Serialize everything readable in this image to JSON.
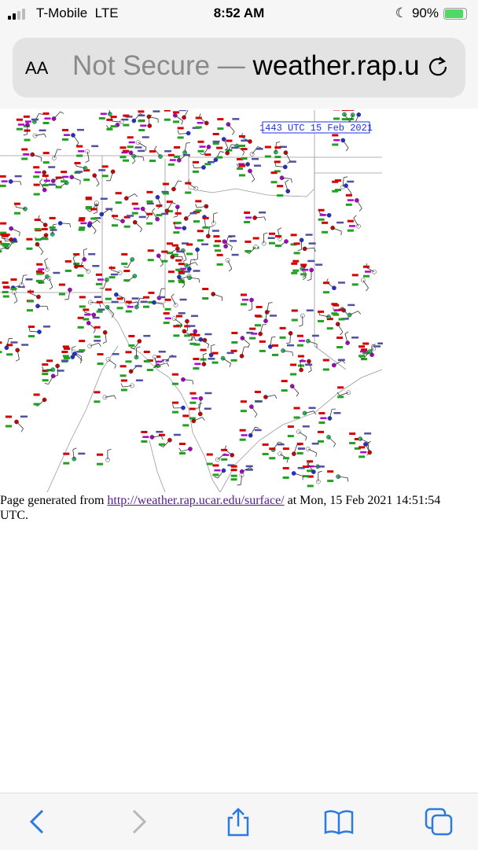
{
  "status_bar": {
    "carrier": "T-Mobile",
    "network": "LTE",
    "time": "8:52 AM",
    "battery": "90%",
    "battery_level": 0.9,
    "icons": [
      "signal-icon",
      "moon-icon",
      "battery-charging-icon"
    ]
  },
  "browser": {
    "text_size_label": "AA",
    "url_prefix": "Not Secure —",
    "url_domain": "weather.rap.u",
    "reload_icon": "reload-icon"
  },
  "map": {
    "title": "1443 UTC 15 Feb 2021",
    "colors": {
      "border": "#9a9a9a",
      "temp": "#d40000",
      "dewpoint": "#22a022",
      "pressure": "#5050a0",
      "weather": "#b000d0",
      "title": "#2030e0"
    }
  },
  "footer": {
    "prefix": "Page generated from",
    "link": "http://weather.rap.ucar.edu/surface/",
    "suffix": "at Mon, 15 Feb 2021 14:51:54 UTC."
  },
  "toolbar": {
    "icons": [
      "back-icon",
      "forward-icon",
      "share-icon",
      "bookmarks-icon",
      "tabs-icon"
    ]
  }
}
